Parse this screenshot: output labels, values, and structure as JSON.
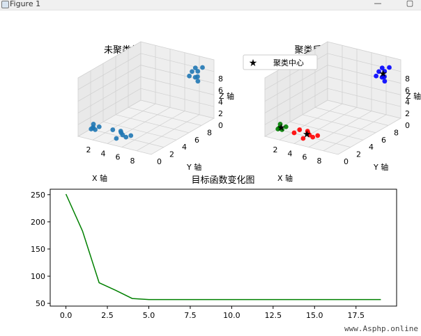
{
  "window": {
    "title": "Figure 1",
    "minimize_glyph": "—",
    "maximize_glyph": "▢"
  },
  "watermark": "www.Asphp.online",
  "chart_data": [
    {
      "type": "scatter3d",
      "title": "未聚类前的图",
      "xlabel": "X 轴",
      "ylabel": "Y 轴",
      "zlabel": "Z 轴",
      "x_ticks": [
        "2",
        "4",
        "6",
        "8"
      ],
      "y_ticks": [
        "0",
        "2",
        "4",
        "6",
        "8"
      ],
      "z_ticks": [
        "0",
        "2",
        "4",
        "6",
        "8"
      ],
      "color": "#1f77b4",
      "points": [
        [
          8.2,
          8.6,
          8.3
        ],
        [
          8.4,
          8.9,
          8.8
        ],
        [
          8.9,
          8.7,
          8.5
        ],
        [
          9.2,
          9.1,
          9.0
        ],
        [
          8.0,
          8.4,
          7.6
        ],
        [
          8.7,
          8.9,
          7.4
        ],
        [
          8.3,
          9.0,
          7.1
        ],
        [
          9.0,
          8.6,
          6.9
        ],
        [
          1.0,
          1.2,
          1.0
        ],
        [
          1.2,
          1.0,
          1.3
        ],
        [
          0.9,
          1.4,
          1.5
        ],
        [
          1.4,
          1.1,
          0.9
        ],
        [
          1.6,
          1.5,
          1.2
        ],
        [
          1.1,
          0.8,
          1.1
        ],
        [
          3.2,
          1.8,
          1.0
        ],
        [
          4.0,
          2.2,
          0.5
        ],
        [
          4.8,
          1.5,
          0.8
        ],
        [
          5.5,
          2.0,
          0.6
        ],
        [
          4.2,
          1.2,
          0.2
        ],
        [
          3.6,
          2.6,
          0.4
        ],
        [
          5.0,
          1.8,
          0.3
        ]
      ]
    },
    {
      "type": "scatter3d",
      "title": "聚类后结果",
      "xlabel": "X 轴",
      "ylabel": "Y 轴",
      "zlabel": "Z 轴",
      "x_ticks": [
        "2",
        "4",
        "6",
        "8"
      ],
      "y_ticks": [
        "0",
        "2",
        "4",
        "6",
        "8"
      ],
      "z_ticks": [
        "0",
        "2",
        "4",
        "6",
        "8"
      ],
      "legend": {
        "label": "聚类中心",
        "marker": "star",
        "placement": "top-left"
      },
      "clusters": [
        {
          "color": "#0000ff",
          "points": [
            [
              8.2,
              8.6,
              8.3
            ],
            [
              8.4,
              8.9,
              8.8
            ],
            [
              8.9,
              8.7,
              8.5
            ],
            [
              9.2,
              9.1,
              9.0
            ],
            [
              8.0,
              8.4,
              7.6
            ],
            [
              8.7,
              8.9,
              7.4
            ],
            [
              8.3,
              9.0,
              7.1
            ],
            [
              9.0,
              8.6,
              6.9
            ]
          ],
          "center": [
            8.6,
            8.8,
            8.0
          ]
        },
        {
          "color": "#ff0000",
          "points": [
            [
              3.2,
              1.8,
              1.0
            ],
            [
              4.0,
              2.2,
              0.5
            ],
            [
              4.8,
              1.5,
              0.8
            ],
            [
              5.5,
              2.0,
              0.6
            ],
            [
              4.2,
              1.2,
              0.2
            ],
            [
              3.6,
              2.6,
              0.4
            ],
            [
              5.0,
              1.8,
              0.3
            ],
            [
              2.8,
              1.4,
              0.6
            ]
          ],
          "center": [
            4.2,
            1.8,
            0.6
          ]
        },
        {
          "color": "#008000",
          "points": [
            [
              1.0,
              1.2,
              1.0
            ],
            [
              1.2,
              1.0,
              1.3
            ],
            [
              0.9,
              1.4,
              1.5
            ],
            [
              1.4,
              1.1,
              0.9
            ],
            [
              1.6,
              1.5,
              1.2
            ],
            [
              1.1,
              0.8,
              1.1
            ]
          ],
          "center": [
            1.2,
            1.2,
            1.2
          ]
        }
      ],
      "center_color": "#000000"
    },
    {
      "type": "line",
      "title": "目标函数变化图",
      "x": [
        0,
        1,
        2,
        3,
        4,
        5,
        6,
        7,
        8,
        9,
        10,
        11,
        12,
        13,
        14,
        15,
        16,
        17,
        18,
        19
      ],
      "series": [
        {
          "values": [
            251,
            183,
            88,
            74,
            59,
            57,
            57,
            57,
            57,
            57,
            57,
            57,
            57,
            57,
            57,
            57,
            57,
            57,
            57,
            57
          ],
          "color": "#008000"
        }
      ],
      "xlim": [
        -0.95,
        19.95
      ],
      "ylim": [
        45,
        260
      ],
      "x_ticks": [
        0,
        2.5,
        5,
        7.5,
        10,
        12.5,
        15,
        17.5
      ],
      "x_tick_labels": [
        "0.0",
        "2.5",
        "5.0",
        "7.5",
        "10.0",
        "12.5",
        "15.0",
        "17.5"
      ],
      "y_ticks": [
        50,
        100,
        150,
        200,
        250
      ],
      "y_tick_labels": [
        "50",
        "100",
        "150",
        "200",
        "250"
      ],
      "grid": false
    }
  ]
}
